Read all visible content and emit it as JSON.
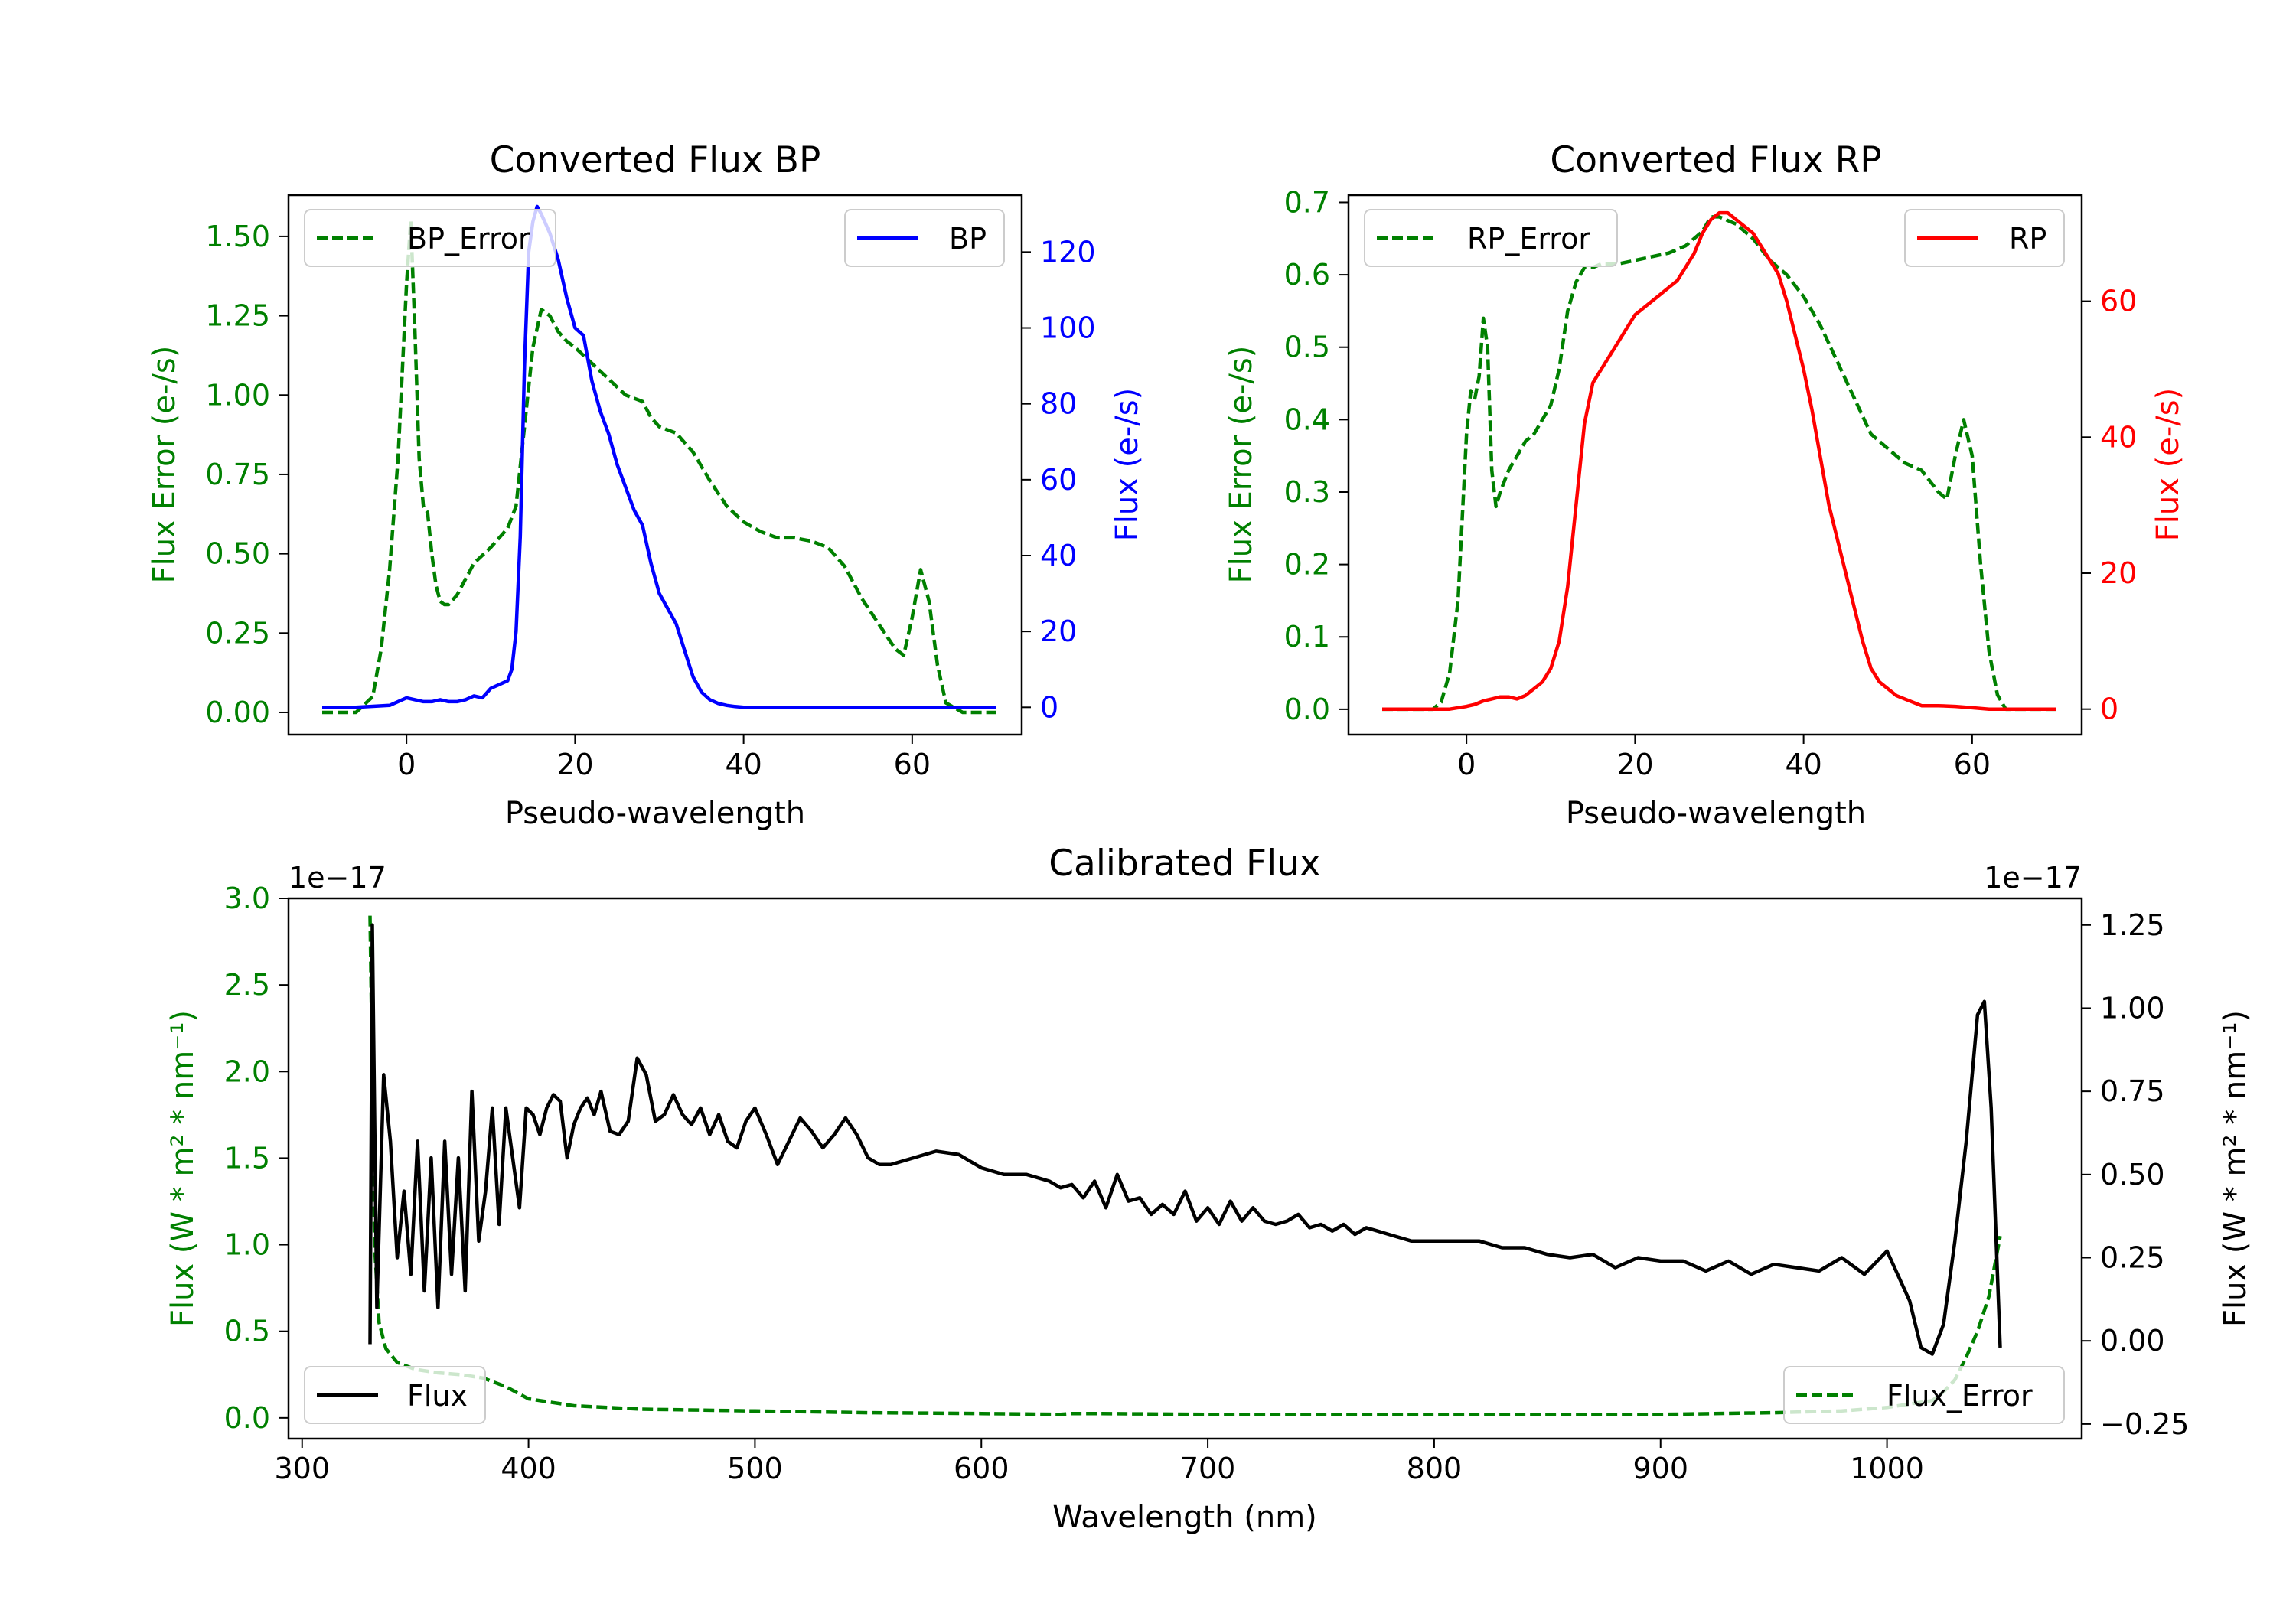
{
  "chart_data": [
    {
      "type": "line",
      "title": "Converted Flux BP",
      "xlabel": "Pseudo-wavelength",
      "ylabel_left": "Flux Error (e-/s)",
      "ylabel_right": "Flux (e-/s)",
      "xlim": [
        -14,
        73
      ],
      "ylim_left": [
        -0.07,
        1.63
      ],
      "ylim_right": [
        -7.2,
        135
      ],
      "xticks": [
        "0",
        "20",
        "40",
        "60"
      ],
      "xtick_values": [
        0,
        20,
        40,
        60
      ],
      "yticks_left": [
        "0.00",
        "0.25",
        "0.50",
        "0.75",
        "1.00",
        "1.25",
        "1.50"
      ],
      "ytick_values_left": [
        0,
        0.25,
        0.5,
        0.75,
        1.0,
        1.25,
        1.5
      ],
      "yticks_right": [
        "0",
        "20",
        "40",
        "60",
        "80",
        "100",
        "120"
      ],
      "ytick_values_right": [
        0,
        20,
        40,
        60,
        80,
        100,
        120
      ],
      "left_color": "#008000",
      "right_color": "#0000ff",
      "legend": [
        {
          "label": "BP_Error",
          "position": "upper-left",
          "style": "dashed",
          "color": "#008000"
        },
        {
          "label": "BP",
          "position": "upper-right",
          "style": "solid",
          "color": "#0000ff"
        }
      ],
      "series": [
        {
          "name": "BP_Error",
          "axis": "left",
          "style": "dashed",
          "color": "#008000",
          "x": [
            -10,
            -6,
            -4,
            -3,
            -2,
            -1,
            0,
            0.5,
            1,
            1.5,
            2,
            2.5,
            3,
            3.5,
            4,
            4.5,
            5,
            6,
            7,
            8,
            10,
            12,
            13,
            14,
            15,
            16,
            17,
            18,
            19,
            20,
            22,
            24,
            26,
            28,
            29,
            30,
            32,
            34,
            36,
            38,
            40,
            42,
            44,
            46,
            48,
            50,
            52,
            54,
            56,
            57,
            58,
            59,
            60,
            61,
            62,
            63,
            64,
            66,
            70
          ],
          "y": [
            0,
            0,
            0.05,
            0.2,
            0.45,
            0.8,
            1.35,
            1.55,
            1.2,
            0.8,
            0.65,
            0.63,
            0.5,
            0.4,
            0.35,
            0.34,
            0.34,
            0.37,
            0.42,
            0.47,
            0.52,
            0.58,
            0.65,
            0.9,
            1.15,
            1.27,
            1.25,
            1.2,
            1.17,
            1.15,
            1.1,
            1.05,
            1.0,
            0.98,
            0.93,
            0.9,
            0.88,
            0.82,
            0.73,
            0.65,
            0.6,
            0.57,
            0.55,
            0.55,
            0.54,
            0.52,
            0.46,
            0.36,
            0.28,
            0.24,
            0.2,
            0.18,
            0.3,
            0.45,
            0.35,
            0.15,
            0.03,
            0,
            0
          ]
        },
        {
          "name": "BP",
          "axis": "right",
          "style": "solid",
          "color": "#0000ff",
          "x": [
            -10,
            -6,
            -2,
            0,
            1,
            2,
            3,
            4,
            5,
            6,
            7,
            8,
            9,
            10,
            11,
            12,
            12.5,
            13,
            13.5,
            14,
            14.5,
            15,
            15.5,
            16,
            17,
            18,
            19,
            20,
            21,
            22,
            23,
            24,
            25,
            26,
            27,
            28,
            29,
            30,
            31,
            32,
            33,
            34,
            35,
            36,
            37,
            38,
            39,
            40,
            41,
            42,
            43,
            44,
            46,
            48,
            50,
            52,
            54,
            56,
            58,
            60,
            62,
            66,
            70
          ],
          "y": [
            0,
            0,
            0.5,
            2.5,
            2,
            1.5,
            1.5,
            2,
            1.5,
            1.5,
            2,
            3,
            2.5,
            5,
            6,
            7,
            10,
            20,
            45,
            90,
            120,
            128,
            132,
            130,
            125,
            118,
            108,
            100,
            98,
            86,
            78,
            72,
            64,
            58,
            52,
            48,
            38,
            30,
            26,
            22,
            15,
            8,
            4,
            2,
            1,
            0.5,
            0.2,
            0,
            0,
            0,
            0,
            0,
            0,
            0,
            0,
            0,
            0,
            0,
            0,
            0,
            0,
            0,
            0
          ]
        }
      ]
    },
    {
      "type": "line",
      "title": "Converted Flux RP",
      "xlabel": "Pseudo-wavelength",
      "ylabel_left": "Flux Error (e-/s)",
      "ylabel_right": "Flux (e-/s)",
      "xlim": [
        -14,
        73
      ],
      "ylim_left": [
        -0.035,
        0.71
      ],
      "ylim_right": [
        -3.75,
        75.6
      ],
      "xticks": [
        "0",
        "20",
        "40",
        "60"
      ],
      "xtick_values": [
        0,
        20,
        40,
        60
      ],
      "yticks_left": [
        "0.0",
        "0.1",
        "0.2",
        "0.3",
        "0.4",
        "0.5",
        "0.6",
        "0.7"
      ],
      "ytick_values_left": [
        0,
        0.1,
        0.2,
        0.3,
        0.4,
        0.5,
        0.6,
        0.7
      ],
      "yticks_right": [
        "0",
        "20",
        "40",
        "60"
      ],
      "ytick_values_right": [
        0,
        20,
        40,
        60
      ],
      "left_color": "#008000",
      "right_color": "#ff0000",
      "legend": [
        {
          "label": "RP_Error",
          "position": "upper-left",
          "style": "dashed",
          "color": "#008000"
        },
        {
          "label": "RP",
          "position": "upper-right",
          "style": "solid",
          "color": "#ff0000"
        }
      ],
      "series": [
        {
          "name": "RP_Error",
          "axis": "left",
          "style": "dashed",
          "color": "#008000",
          "x": [
            -10,
            -6,
            -4,
            -3,
            -2,
            -1,
            0,
            0.5,
            1,
            1.5,
            2,
            2.5,
            3,
            3.5,
            4,
            5,
            6,
            7,
            8,
            9,
            10,
            11,
            12,
            13,
            14,
            15,
            16,
            18,
            20,
            22,
            24,
            26,
            28,
            29,
            30,
            32,
            34,
            36,
            38,
            40,
            42,
            44,
            46,
            48,
            50,
            52,
            54,
            56,
            57,
            58,
            59,
            60,
            61,
            62,
            63,
            64,
            66,
            70
          ],
          "y": [
            0,
            0,
            0,
            0.01,
            0.05,
            0.15,
            0.38,
            0.44,
            0.43,
            0.46,
            0.54,
            0.5,
            0.33,
            0.28,
            0.3,
            0.33,
            0.35,
            0.37,
            0.38,
            0.4,
            0.42,
            0.47,
            0.55,
            0.59,
            0.61,
            0.61,
            0.615,
            0.615,
            0.62,
            0.625,
            0.63,
            0.64,
            0.66,
            0.68,
            0.68,
            0.67,
            0.65,
            0.62,
            0.6,
            0.57,
            0.53,
            0.48,
            0.43,
            0.38,
            0.36,
            0.34,
            0.33,
            0.3,
            0.29,
            0.35,
            0.4,
            0.35,
            0.2,
            0.08,
            0.02,
            0,
            0,
            0
          ]
        },
        {
          "name": "RP",
          "axis": "right",
          "style": "solid",
          "color": "#ff0000",
          "x": [
            -10,
            -6,
            -2,
            0,
            1,
            2,
            3,
            4,
            5,
            6,
            7,
            8,
            9,
            10,
            11,
            12,
            13,
            14,
            15,
            16,
            17,
            18,
            19,
            20,
            21,
            22,
            23,
            24,
            25,
            26,
            27,
            28,
            29,
            30,
            31,
            32,
            33,
            34,
            35,
            36,
            37,
            38,
            39,
            40,
            41,
            42,
            43,
            44,
            45,
            46,
            47,
            48,
            49,
            50,
            51,
            52,
            53,
            54,
            56,
            58,
            60,
            62,
            66,
            70
          ],
          "y": [
            0,
            0,
            0,
            0.4,
            0.7,
            1.2,
            1.5,
            1.8,
            1.8,
            1.5,
            2,
            3,
            4,
            6,
            10,
            18,
            30,
            42,
            48,
            50,
            52,
            54,
            56,
            58,
            59,
            60,
            61,
            62,
            63,
            65,
            67,
            70,
            72,
            73,
            73,
            72,
            71,
            70,
            68,
            66,
            64,
            60,
            55,
            50,
            44,
            37,
            30,
            25,
            20,
            15,
            10,
            6,
            4,
            3,
            2,
            1.5,
            1,
            0.5,
            0.5,
            0.4,
            0.2,
            0,
            0,
            0
          ]
        }
      ]
    },
    {
      "type": "line",
      "title": "Calibrated Flux",
      "xlabel": "Wavelength (nm)",
      "ylabel_left": "Flux (W * m² * nm⁻¹)",
      "ylabel_right": "Flux (W * m² * nm⁻¹)",
      "offset_left": "1e−17",
      "offset_right": "1e−17",
      "xlim": [
        294,
        1086
      ],
      "ylim_left": [
        -0.12,
        3.0
      ],
      "ylim_right": [
        -0.294,
        1.33
      ],
      "xticks": [
        "300",
        "400",
        "500",
        "600",
        "700",
        "800",
        "900",
        "1000"
      ],
      "xtick_values": [
        300,
        400,
        500,
        600,
        700,
        800,
        900,
        1000
      ],
      "yticks_left": [
        "0.0",
        "0.5",
        "1.0",
        "1.5",
        "2.0",
        "2.5",
        "3.0"
      ],
      "ytick_values_left": [
        0,
        0.5,
        1.0,
        1.5,
        2.0,
        2.5,
        3.0
      ],
      "yticks_right": [
        "−0.25",
        "0.00",
        "0.25",
        "0.50",
        "0.75",
        "1.00",
        "1.25"
      ],
      "ytick_values_right": [
        -0.25,
        0,
        0.25,
        0.5,
        0.75,
        1.0,
        1.25
      ],
      "left_color": "#008000",
      "right_color": "#000000",
      "legend": [
        {
          "label": "Flux",
          "position": "lower-left",
          "style": "solid",
          "color": "#000000"
        },
        {
          "label": "Flux_Error",
          "position": "lower-right",
          "style": "dashed",
          "color": "#008000"
        }
      ],
      "series": [
        {
          "name": "Flux_Error",
          "axis": "left",
          "style": "dashed",
          "color": "#008000",
          "x": [
            330,
            331,
            332,
            334,
            337,
            342,
            350,
            360,
            370,
            380,
            390,
            400,
            420,
            450,
            500,
            550,
            600,
            635,
            640,
            650,
            700,
            800,
            900,
            950,
            980,
            1000,
            1010,
            1020,
            1025,
            1030,
            1035,
            1040,
            1045,
            1050
          ],
          "y": [
            2.9,
            2.0,
            1.0,
            0.55,
            0.4,
            0.32,
            0.28,
            0.26,
            0.25,
            0.23,
            0.18,
            0.11,
            0.07,
            0.05,
            0.04,
            0.03,
            0.025,
            0.02,
            0.025,
            0.025,
            0.02,
            0.02,
            0.02,
            0.03,
            0.04,
            0.06,
            0.08,
            0.1,
            0.15,
            0.22,
            0.35,
            0.5,
            0.7,
            1.05
          ]
        },
        {
          "name": "Flux",
          "axis": "right",
          "style": "solid",
          "color": "#000000",
          "x": [
            330,
            331,
            333,
            336,
            339,
            342,
            345,
            348,
            351,
            354,
            357,
            360,
            363,
            366,
            369,
            372,
            375,
            378,
            381,
            384,
            387,
            390,
            393,
            396,
            399,
            402,
            405,
            408,
            411,
            414,
            417,
            420,
            423,
            426,
            429,
            432,
            436,
            440,
            444,
            448,
            452,
            456,
            460,
            464,
            468,
            472,
            476,
            480,
            484,
            488,
            492,
            496,
            500,
            505,
            510,
            515,
            520,
            525,
            530,
            535,
            540,
            545,
            550,
            555,
            560,
            570,
            580,
            590,
            600,
            610,
            620,
            630,
            635,
            640,
            645,
            650,
            655,
            660,
            665,
            670,
            675,
            680,
            685,
            690,
            695,
            700,
            705,
            710,
            715,
            720,
            725,
            730,
            735,
            740,
            745,
            750,
            755,
            760,
            765,
            770,
            775,
            780,
            790,
            800,
            810,
            820,
            830,
            840,
            850,
            860,
            870,
            880,
            890,
            900,
            910,
            920,
            930,
            940,
            950,
            960,
            970,
            980,
            990,
            1000,
            1010,
            1015,
            1020,
            1025,
            1030,
            1035,
            1040,
            1043,
            1046,
            1050
          ],
          "y": [
            -0.01,
            1.25,
            0.1,
            0.8,
            0.6,
            0.25,
            0.45,
            0.2,
            0.6,
            0.15,
            0.55,
            0.1,
            0.6,
            0.2,
            0.55,
            0.15,
            0.75,
            0.3,
            0.45,
            0.7,
            0.35,
            0.7,
            0.55,
            0.4,
            0.7,
            0.68,
            0.62,
            0.7,
            0.74,
            0.72,
            0.55,
            0.65,
            0.7,
            0.73,
            0.68,
            0.75,
            0.63,
            0.62,
            0.66,
            0.85,
            0.8,
            0.66,
            0.68,
            0.74,
            0.68,
            0.65,
            0.7,
            0.62,
            0.68,
            0.6,
            0.58,
            0.66,
            0.7,
            0.62,
            0.53,
            0.6,
            0.67,
            0.63,
            0.58,
            0.62,
            0.67,
            0.62,
            0.55,
            0.53,
            0.53,
            0.55,
            0.57,
            0.56,
            0.52,
            0.5,
            0.5,
            0.48,
            0.46,
            0.47,
            0.43,
            0.48,
            0.4,
            0.5,
            0.42,
            0.43,
            0.38,
            0.41,
            0.38,
            0.45,
            0.36,
            0.4,
            0.35,
            0.42,
            0.36,
            0.4,
            0.36,
            0.35,
            0.36,
            0.38,
            0.34,
            0.35,
            0.33,
            0.35,
            0.32,
            0.34,
            0.33,
            0.32,
            0.3,
            0.3,
            0.3,
            0.3,
            0.28,
            0.28,
            0.26,
            0.25,
            0.26,
            0.22,
            0.25,
            0.24,
            0.24,
            0.21,
            0.24,
            0.2,
            0.23,
            0.22,
            0.21,
            0.25,
            0.2,
            0.27,
            0.12,
            -0.02,
            -0.04,
            0.05,
            0.3,
            0.6,
            0.98,
            1.02,
            0.7,
            -0.02
          ]
        }
      ]
    }
  ]
}
